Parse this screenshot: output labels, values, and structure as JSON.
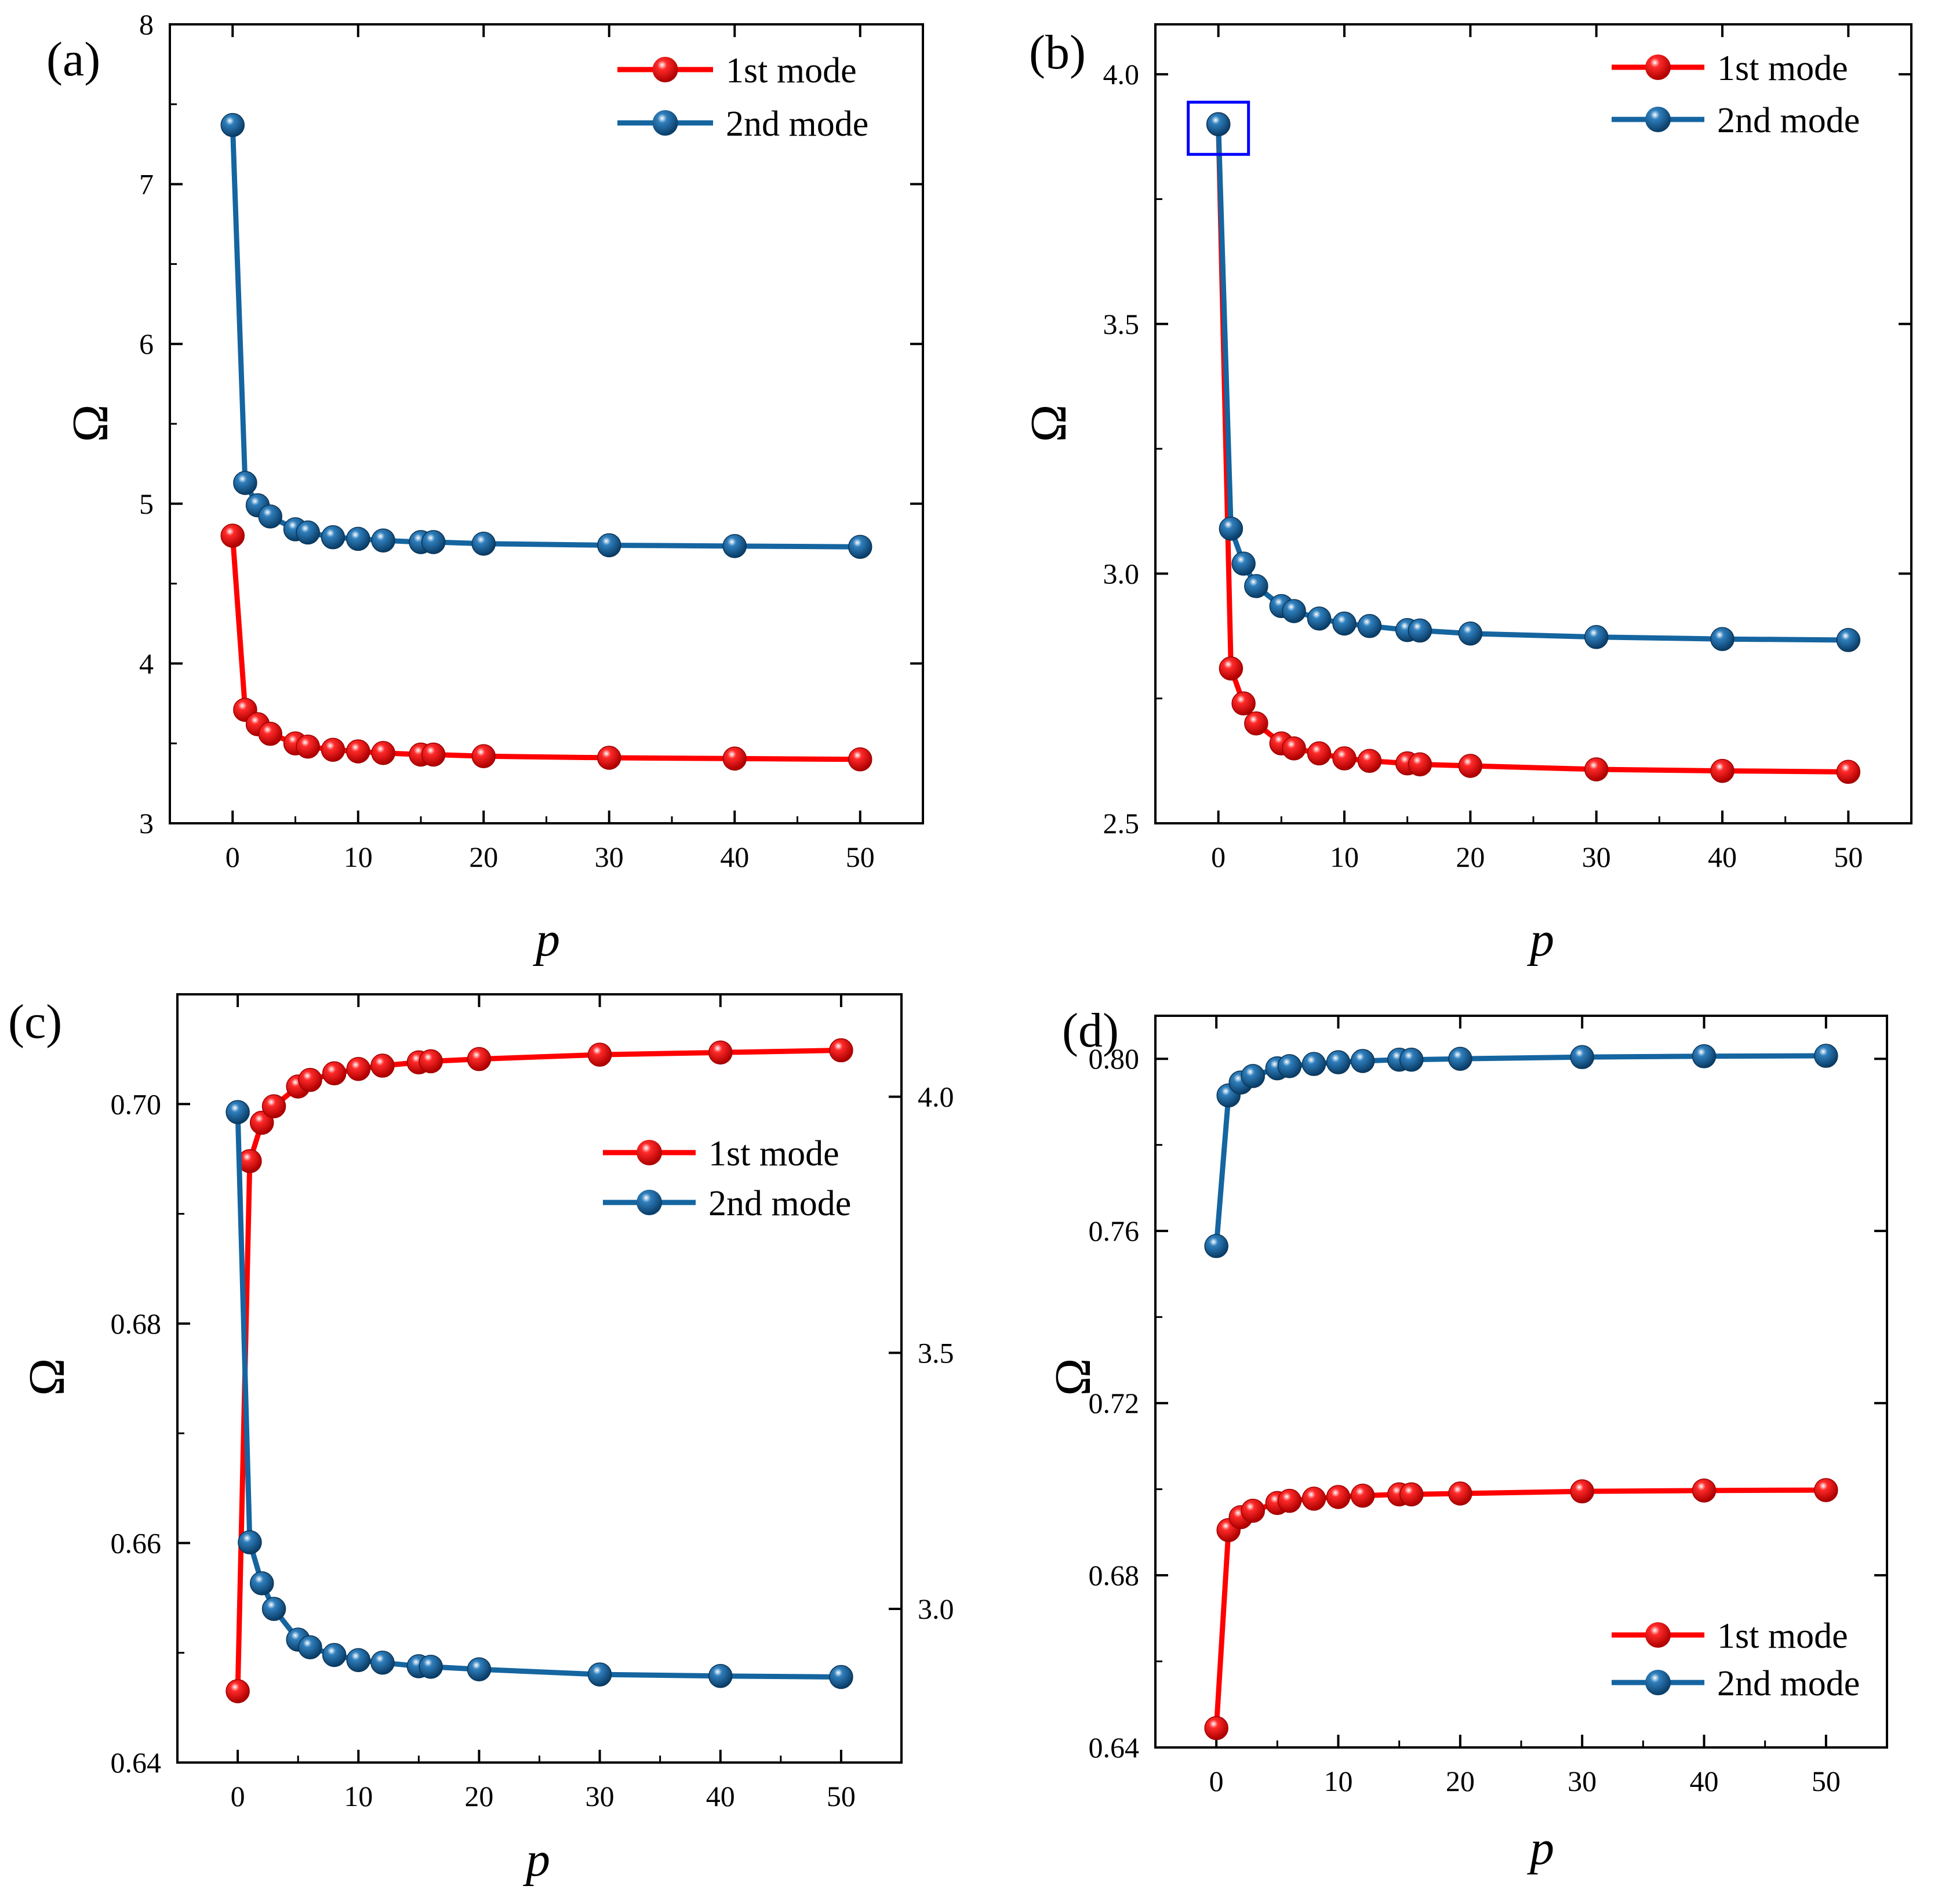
{
  "colors": {
    "series1": "#ff0000",
    "series2": "#1565a0",
    "highlight": "#0000ff",
    "axis": "#000000"
  },
  "chart_data": [
    {
      "panel": "(a)",
      "type": "line",
      "xlabel": "p",
      "ylabel": "Ω",
      "xlim": [
        -5,
        55
      ],
      "ylim": [
        3,
        8
      ],
      "xticks": [
        0,
        10,
        20,
        30,
        40,
        50
      ],
      "yticks": [
        3,
        4,
        5,
        6,
        7,
        8
      ],
      "legend_position": "top-right",
      "series": [
        {
          "name": "1st mode",
          "axis": "left",
          "x": [
            0,
            1,
            2,
            3,
            5,
            6,
            8,
            10,
            12,
            15,
            16,
            20,
            30,
            40,
            50
          ],
          "y": [
            4.8,
            3.71,
            3.62,
            3.56,
            3.5,
            3.48,
            3.46,
            3.45,
            3.44,
            3.43,
            3.43,
            3.42,
            3.41,
            3.405,
            3.4
          ]
        },
        {
          "name": "2nd mode",
          "axis": "left",
          "x": [
            0,
            1,
            2,
            3,
            5,
            6,
            8,
            10,
            12,
            15,
            16,
            20,
            30,
            40,
            50
          ],
          "y": [
            7.37,
            5.13,
            4.99,
            4.92,
            4.84,
            4.82,
            4.79,
            4.78,
            4.77,
            4.76,
            4.76,
            4.75,
            4.74,
            4.735,
            4.73
          ]
        }
      ]
    },
    {
      "panel": "(b)",
      "type": "line",
      "xlabel": "p",
      "ylabel": "Ω",
      "xlim": [
        -5,
        55
      ],
      "ylim": [
        2.5,
        4.1
      ],
      "xticks": [
        0,
        10,
        20,
        30,
        40,
        50
      ],
      "yticks": [
        2.5,
        3.0,
        3.5,
        4.0
      ],
      "ytick_labels": [
        "2.5",
        "3.0",
        "3.5",
        "4.0"
      ],
      "legend_position": "top-right",
      "highlight_point": {
        "x": 0,
        "y": 3.9
      },
      "series": [
        {
          "name": "1st mode",
          "axis": "left",
          "x": [
            0,
            1,
            2,
            3,
            5,
            6,
            8,
            10,
            12,
            15,
            16,
            20,
            30,
            40,
            50
          ],
          "y": [
            3.9,
            2.81,
            2.74,
            2.7,
            2.66,
            2.65,
            2.64,
            2.63,
            2.625,
            2.62,
            2.618,
            2.615,
            2.608,
            2.605,
            2.603
          ]
        },
        {
          "name": "2nd mode",
          "axis": "left",
          "x": [
            0,
            1,
            2,
            3,
            5,
            6,
            8,
            10,
            12,
            15,
            16,
            20,
            30,
            40,
            50
          ],
          "y": [
            3.9,
            3.09,
            3.02,
            2.975,
            2.935,
            2.925,
            2.91,
            2.9,
            2.895,
            2.887,
            2.886,
            2.88,
            2.873,
            2.869,
            2.867
          ]
        }
      ]
    },
    {
      "panel": "(c)",
      "type": "line",
      "xlabel": "p",
      "ylabel": "Ω",
      "xlim": [
        -5,
        55
      ],
      "ylim": [
        0.64,
        0.71
      ],
      "y2lim": [
        2.7,
        4.2
      ],
      "xticks": [
        0,
        10,
        20,
        30,
        40,
        50
      ],
      "yticks": [
        0.64,
        0.66,
        0.68,
        0.7
      ],
      "ytick_labels": [
        "0.64",
        "0.66",
        "0.68",
        "0.70"
      ],
      "y2ticks": [
        3.0,
        3.5,
        4.0
      ],
      "y2tick_labels": [
        "3.0",
        "3.5",
        "4.0"
      ],
      "legend_position": "upper-right",
      "series": [
        {
          "name": "1st mode",
          "axis": "left",
          "x": [
            0,
            1,
            2,
            3,
            5,
            6,
            8,
            10,
            12,
            15,
            16,
            20,
            30,
            40,
            50
          ],
          "y": [
            0.6465,
            0.6948,
            0.6983,
            0.6998,
            0.7016,
            0.7022,
            0.7028,
            0.7032,
            0.7035,
            0.7038,
            0.7039,
            0.7041,
            0.7045,
            0.7047,
            0.7049
          ]
        },
        {
          "name": "2nd mode",
          "axis": "right",
          "x": [
            0,
            1,
            2,
            3,
            5,
            6,
            8,
            10,
            12,
            15,
            16,
            20,
            30,
            40,
            50
          ],
          "y": [
            3.97,
            3.13,
            3.05,
            3.0,
            2.94,
            2.925,
            2.91,
            2.9,
            2.895,
            2.888,
            2.887,
            2.882,
            2.872,
            2.869,
            2.867
          ]
        }
      ]
    },
    {
      "panel": "(d)",
      "type": "line",
      "xlabel": "p",
      "ylabel": "Ω",
      "xlim": [
        -5,
        55
      ],
      "ylim": [
        0.64,
        0.81
      ],
      "xticks": [
        0,
        10,
        20,
        30,
        40,
        50
      ],
      "yticks": [
        0.64,
        0.68,
        0.72,
        0.76,
        0.8
      ],
      "ytick_labels": [
        "0.64",
        "0.68",
        "0.72",
        "0.76",
        "0.80"
      ],
      "legend_position": "bottom-right",
      "series": [
        {
          "name": "1st mode",
          "axis": "left",
          "x": [
            0,
            1,
            2,
            3,
            5,
            6,
            8,
            10,
            12,
            15,
            16,
            20,
            30,
            40,
            50
          ],
          "y": [
            0.6445,
            0.6905,
            0.6935,
            0.695,
            0.6968,
            0.6973,
            0.6978,
            0.6982,
            0.6985,
            0.6988,
            0.6988,
            0.699,
            0.6995,
            0.6997,
            0.6998
          ]
        },
        {
          "name": "2nd mode",
          "axis": "left",
          "x": [
            0,
            1,
            2,
            3,
            5,
            6,
            8,
            10,
            12,
            15,
            16,
            20,
            30,
            40,
            50
          ],
          "y": [
            0.7565,
            0.7915,
            0.7945,
            0.796,
            0.7978,
            0.7983,
            0.7988,
            0.7992,
            0.7995,
            0.7998,
            0.7998,
            0.8,
            0.8004,
            0.8006,
            0.8007
          ]
        }
      ]
    }
  ]
}
